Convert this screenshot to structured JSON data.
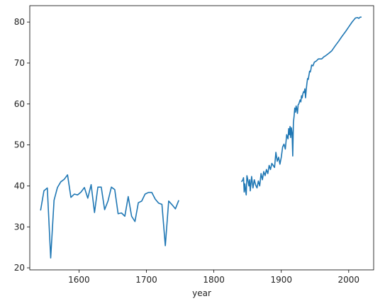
{
  "chart_data": {
    "type": "line",
    "title": "",
    "xlabel": "year",
    "ylabel": "",
    "xlim": [
      1527,
      2037
    ],
    "ylim": [
      19.5,
      84
    ],
    "grid": false,
    "x_ticks": [
      1600,
      1700,
      1800,
      1900,
      2000
    ],
    "y_ticks": [
      20,
      30,
      40,
      50,
      60,
      70,
      80
    ],
    "series_color": "#1f77b4",
    "segments": [
      [
        [
          1543,
          34.0
        ],
        [
          1548,
          38.8
        ],
        [
          1553,
          39.5
        ],
        [
          1558,
          22.4
        ],
        [
          1563,
          36.5
        ],
        [
          1568,
          39.6
        ],
        [
          1573,
          41.0
        ],
        [
          1578,
          41.6
        ],
        [
          1583,
          42.7
        ],
        [
          1588,
          37.2
        ],
        [
          1593,
          38.0
        ],
        [
          1598,
          37.8
        ],
        [
          1603,
          38.5
        ],
        [
          1608,
          39.6
        ],
        [
          1613,
          37.0
        ],
        [
          1618,
          40.3
        ],
        [
          1623,
          33.5
        ],
        [
          1628,
          39.7
        ],
        [
          1633,
          39.7
        ],
        [
          1638,
          34.2
        ],
        [
          1643,
          36.3
        ],
        [
          1648,
          39.7
        ],
        [
          1653,
          39.1
        ],
        [
          1658,
          33.2
        ],
        [
          1663,
          33.4
        ],
        [
          1668,
          32.6
        ],
        [
          1673,
          37.4
        ],
        [
          1678,
          32.6
        ],
        [
          1683,
          31.3
        ],
        [
          1688,
          35.9
        ],
        [
          1693,
          36.3
        ],
        [
          1698,
          38.0
        ],
        [
          1703,
          38.4
        ],
        [
          1708,
          38.4
        ],
        [
          1713,
          36.8
        ],
        [
          1718,
          35.8
        ],
        [
          1723,
          35.5
        ],
        [
          1728,
          25.4
        ],
        [
          1733,
          36.3
        ],
        [
          1738,
          35.4
        ],
        [
          1743,
          34.4
        ],
        [
          1748,
          36.5
        ]
      ],
      [
        [
          1841,
          41.0
        ],
        [
          1843,
          41.5
        ],
        [
          1844,
          42.0
        ],
        [
          1845,
          38.5
        ],
        [
          1846,
          40.5
        ],
        [
          1847,
          39.0
        ],
        [
          1848,
          37.8
        ],
        [
          1849,
          42.5
        ],
        [
          1850,
          41.8
        ],
        [
          1852,
          40.0
        ],
        [
          1853,
          41.5
        ],
        [
          1854,
          38.8
        ],
        [
          1856,
          42.3
        ],
        [
          1858,
          39.5
        ],
        [
          1860,
          41.5
        ],
        [
          1862,
          40.2
        ],
        [
          1864,
          39.5
        ],
        [
          1866,
          41.2
        ],
        [
          1868,
          40.0
        ],
        [
          1870,
          43.0
        ],
        [
          1872,
          41.5
        ],
        [
          1874,
          43.5
        ],
        [
          1876,
          42.5
        ],
        [
          1878,
          44.0
        ],
        [
          1880,
          43.0
        ],
        [
          1882,
          45.0
        ],
        [
          1884,
          44.0
        ],
        [
          1886,
          45.5
        ],
        [
          1888,
          45.0
        ],
        [
          1890,
          44.5
        ],
        [
          1892,
          48.2
        ],
        [
          1894,
          46.0
        ],
        [
          1896,
          47.0
        ],
        [
          1898,
          45.3
        ],
        [
          1900,
          47.0
        ],
        [
          1902,
          49.5
        ],
        [
          1904,
          50.2
        ],
        [
          1906,
          49.0
        ],
        [
          1908,
          52.5
        ],
        [
          1910,
          51.5
        ],
        [
          1911,
          54.0
        ],
        [
          1912,
          52.5
        ],
        [
          1913,
          54.5
        ],
        [
          1914,
          51.8
        ],
        [
          1915,
          54.2
        ],
        [
          1916,
          53.0
        ],
        [
          1917,
          47.3
        ],
        [
          1918,
          55.5
        ],
        [
          1919,
          57.0
        ],
        [
          1920,
          59.0
        ],
        [
          1921,
          58.0
        ],
        [
          1922,
          59.5
        ],
        [
          1923,
          58.8
        ],
        [
          1924,
          57.7
        ],
        [
          1925,
          59.8
        ],
        [
          1926,
          60.0
        ],
        [
          1927,
          60.5
        ],
        [
          1928,
          61.0
        ],
        [
          1929,
          60.5
        ],
        [
          1930,
          62.0
        ],
        [
          1931,
          61.5
        ],
        [
          1932,
          62.5
        ],
        [
          1933,
          63.0
        ],
        [
          1934,
          62.8
        ],
        [
          1935,
          63.7
        ],
        [
          1936,
          61.5
        ],
        [
          1937,
          63.5
        ],
        [
          1938,
          65.0
        ],
        [
          1939,
          66.2
        ],
        [
          1940,
          66.0
        ],
        [
          1941,
          67.0
        ],
        [
          1942,
          68.0
        ],
        [
          1943,
          67.8
        ],
        [
          1944,
          68.5
        ],
        [
          1945,
          69.5
        ],
        [
          1947,
          69.3
        ],
        [
          1949,
          70.2
        ],
        [
          1952,
          70.5
        ],
        [
          1955,
          71.0
        ],
        [
          1960,
          71.0
        ],
        [
          1963,
          71.5
        ],
        [
          1966,
          71.8
        ],
        [
          1970,
          72.3
        ],
        [
          1975,
          73.0
        ],
        [
          1980,
          74.2
        ],
        [
          1985,
          75.3
        ],
        [
          1990,
          76.5
        ],
        [
          1995,
          77.6
        ],
        [
          2000,
          78.8
        ],
        [
          2005,
          80.0
        ],
        [
          2010,
          81.0
        ],
        [
          2013,
          81.1
        ],
        [
          2015,
          80.9
        ],
        [
          2017,
          81.2
        ],
        [
          2019,
          81.2
        ]
      ]
    ]
  }
}
